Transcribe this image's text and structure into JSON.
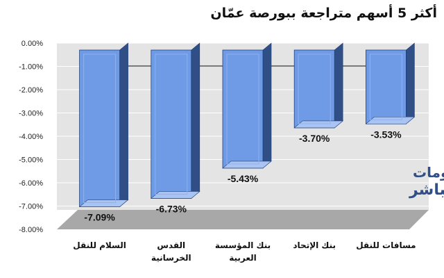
{
  "chart_data": {
    "type": "bar",
    "title": "أكثر 5 أسهم متراجعة ببورصة عمّان",
    "categories": [
      "السلام للنقل",
      "القدس الخرسانية",
      "بنك المؤسسة العربية",
      "بنك الإتحاد",
      "مسافات للنقل"
    ],
    "category_lines": [
      [
        "السلام للنقل"
      ],
      [
        "القدس",
        "الخرسانية"
      ],
      [
        "بنك المؤسسة",
        "العربية"
      ],
      [
        "بنك الإتحاد"
      ],
      [
        "مسافات للنقل"
      ]
    ],
    "values": [
      -7.09,
      -6.73,
      -5.43,
      -3.7,
      -3.53
    ],
    "data_labels": [
      "-7.09%",
      "-6.73%",
      "-5.43%",
      "-3.70%",
      "-3.53%"
    ],
    "ylim": [
      -8,
      0
    ],
    "y_ticks": [
      "0.00%",
      "-1.00%",
      "-2.00%",
      "-3.00%",
      "-4.00%",
      "-5.00%",
      "-6.00%",
      "-7.00%",
      "-8.00%"
    ],
    "y_tick_values": [
      0,
      -1,
      -2,
      -3,
      -4,
      -5,
      -6,
      -7,
      -8
    ],
    "grid": true,
    "bar_style": "3d",
    "colors": {
      "bar_front": "#6f9be6",
      "bar_side": "#2f4f86",
      "bar_top": "#a9c4f2",
      "bar_stroke": "#1f3f7a",
      "wall": "#e4e4e4",
      "floor": "#a8a8a8",
      "gridline": "#ffffff"
    }
  },
  "watermark": {
    "line1": "معلومات",
    "line2": "مباشر",
    "color": "#2f4f86"
  }
}
